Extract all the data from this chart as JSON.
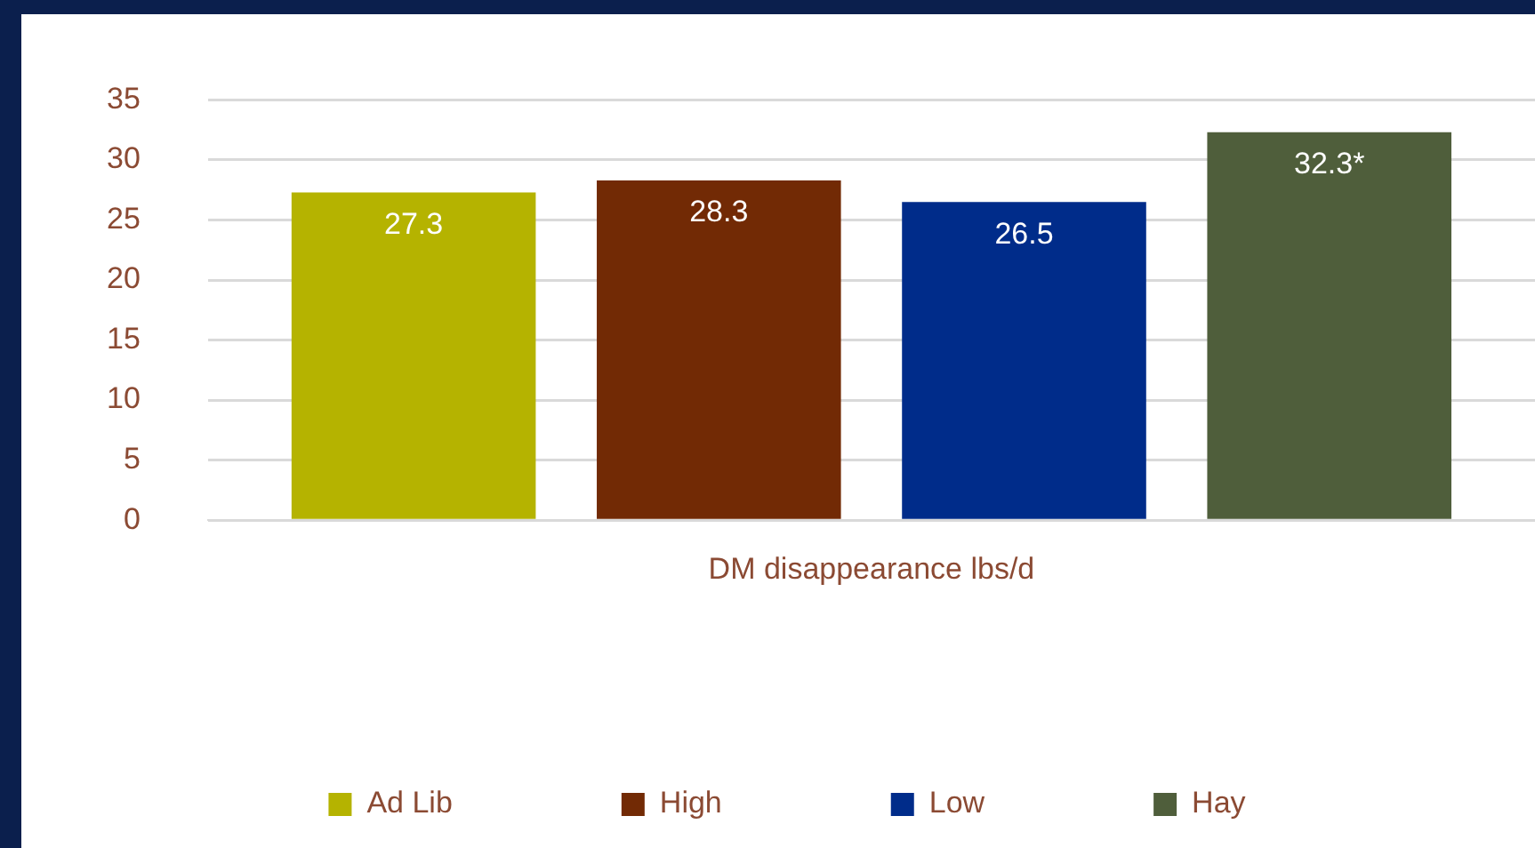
{
  "chart_data": {
    "type": "bar",
    "categories": [
      "DM disappearance lbs/d"
    ],
    "series": [
      {
        "name": "Ad Lib",
        "color": "#b5b300",
        "values": [
          27.3
        ],
        "value_labels": [
          "27.3"
        ]
      },
      {
        "name": "High",
        "color": "#722a05",
        "values": [
          28.3
        ],
        "value_labels": [
          "28.3"
        ]
      },
      {
        "name": "Low",
        "color": "#002c8a",
        "values": [
          26.5
        ],
        "value_labels": [
          "26.5"
        ]
      },
      {
        "name": "Hay",
        "color": "#4f5e3b",
        "values": [
          32.3
        ],
        "value_labels": [
          "32.3*"
        ]
      }
    ],
    "ylim": [
      0,
      35
    ],
    "yticks": [
      0,
      5,
      10,
      15,
      20,
      25,
      30,
      35
    ],
    "grid": "y",
    "legend": "bottom"
  }
}
